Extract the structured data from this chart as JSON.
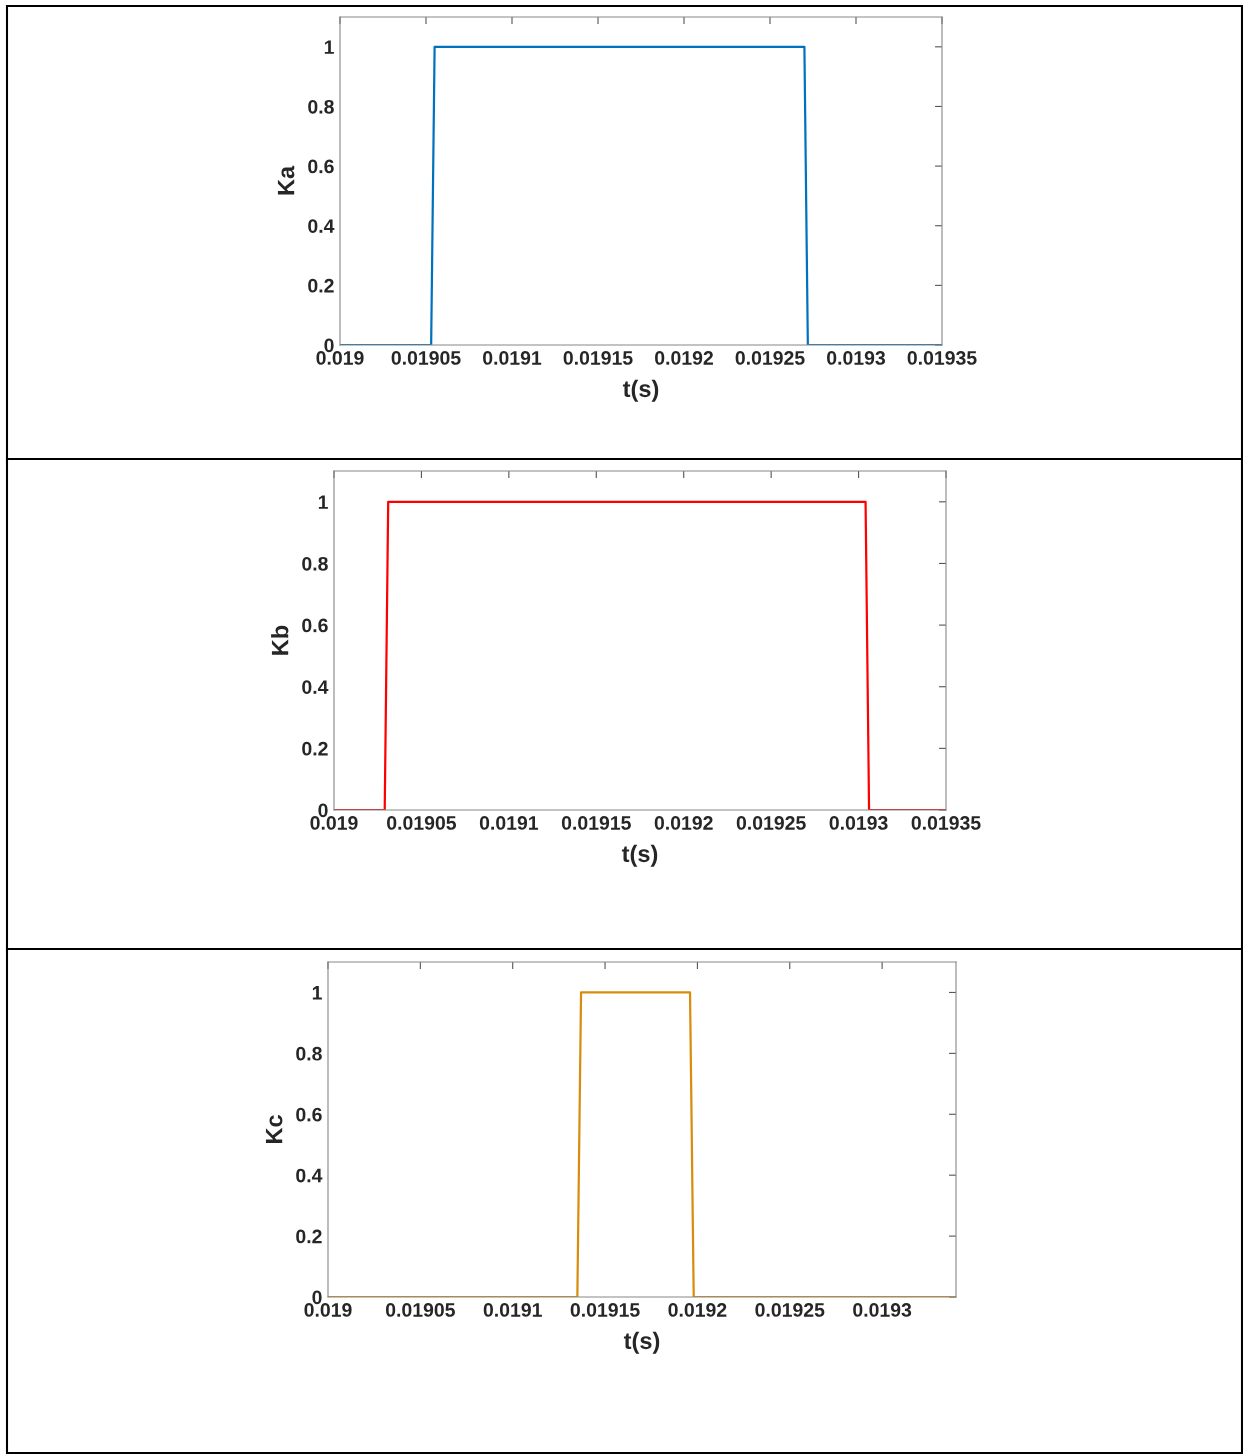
{
  "chart_data": [
    {
      "type": "line",
      "xlabel": "t(s)",
      "ylabel": "Ka",
      "xlim": [
        0.019,
        0.01935
      ],
      "ylim": [
        0,
        1.1
      ],
      "xticks": [
        0.019,
        0.01905,
        0.0191,
        0.01915,
        0.0192,
        0.01925,
        0.0193,
        0.01935
      ],
      "yticks": [
        0,
        0.2,
        0.4,
        0.6,
        0.8,
        1
      ],
      "grid": false,
      "legend": false,
      "series": [
        {
          "color": "#0072bd",
          "x": [
            0.019,
            0.019053,
            0.019055,
            0.01927,
            0.019272,
            0.01935
          ],
          "values": [
            0,
            0,
            1,
            1,
            0,
            0
          ]
        }
      ]
    },
    {
      "type": "line",
      "xlabel": "t(s)",
      "ylabel": "Kb",
      "xlim": [
        0.019,
        0.01935
      ],
      "ylim": [
        0,
        1.1
      ],
      "xticks": [
        0.019,
        0.01905,
        0.0191,
        0.01915,
        0.0192,
        0.01925,
        0.0193,
        0.01935
      ],
      "yticks": [
        0,
        0.2,
        0.4,
        0.6,
        0.8,
        1
      ],
      "grid": false,
      "legend": false,
      "series": [
        {
          "color": "#ff0000",
          "x": [
            0.019,
            0.019029,
            0.019031,
            0.019304,
            0.019306,
            0.01935
          ],
          "values": [
            0,
            0,
            1,
            1,
            0,
            0
          ]
        }
      ]
    },
    {
      "type": "line",
      "xlabel": "t(s)",
      "ylabel": "Kc",
      "xlim": [
        0.019,
        0.01934
      ],
      "ylim": [
        0,
        1.1
      ],
      "xticks": [
        0.019,
        0.01905,
        0.0191,
        0.01915,
        0.0192,
        0.01925,
        0.0193
      ],
      "yticks": [
        0,
        0.2,
        0.4,
        0.6,
        0.8,
        1
      ],
      "grid": false,
      "legend": false,
      "series": [
        {
          "color": "#d98c0b",
          "x": [
            0.019,
            0.019135,
            0.019137,
            0.019196,
            0.019198,
            0.01934
          ],
          "values": [
            0,
            0,
            1,
            1,
            0,
            0
          ]
        }
      ]
    }
  ]
}
